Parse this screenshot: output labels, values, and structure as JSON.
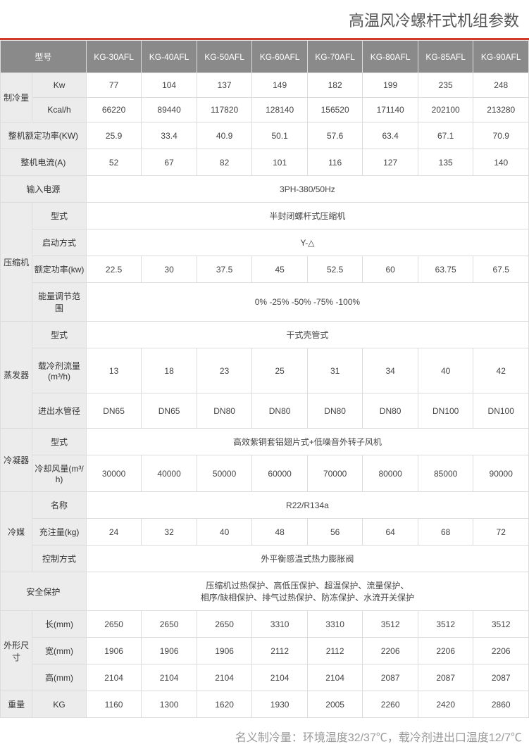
{
  "title": "高温风冷螺杆式机组参数",
  "footnote": "名义制冷量：环境温度32/37℃，载冷剂进出口温度12/7℃",
  "colors": {
    "accent": "#d13a2d",
    "header_bg": "#8a8a8a",
    "header_fg": "#ffffff",
    "row_head_bg": "#ececec",
    "border": "#dcdcdc",
    "title_color": "#555555",
    "footnote_color": "#9a9a9a",
    "cell_text": "#444444"
  },
  "typography": {
    "title_fontsize": 22,
    "cell_fontsize": 12,
    "footnote_fontsize": 16
  },
  "header": {
    "model_label": "型号",
    "models": [
      "KG-30AFL",
      "KG-40AFL",
      "KG-50AFL",
      "KG-60AFL",
      "KG-70AFL",
      "KG-80AFL",
      "KG-85AFL",
      "KG-90AFL"
    ]
  },
  "rows": {
    "cooling": {
      "group": "制冷量",
      "kw_label": "Kw",
      "kw": [
        "77",
        "104",
        "137",
        "149",
        "182",
        "199",
        "235",
        "248"
      ],
      "kcal_label": "Kcal/h",
      "kcal": [
        "66220",
        "89440",
        "117820",
        "128140",
        "156520",
        "171140",
        "202100",
        "213280"
      ]
    },
    "rated_power": {
      "label": "整机额定功率(KW)",
      "vals": [
        "25.9",
        "33.4",
        "40.9",
        "50.1",
        "57.6",
        "63.4",
        "67.1",
        "70.9"
      ]
    },
    "current": {
      "label": "整机电流(A)",
      "vals": [
        "52",
        "67",
        "82",
        "101",
        "116",
        "127",
        "135",
        "140"
      ]
    },
    "power_input": {
      "label": "输入电源",
      "value": "3PH-380/50Hz"
    },
    "compressor": {
      "group": "压缩机",
      "type_label": "型式",
      "type": "半封闭螺杆式压缩机",
      "start_label": "启动方式",
      "start": "Y-△",
      "rated_label": "额定功率(kw)",
      "rated": [
        "22.5",
        "30",
        "37.5",
        "45",
        "52.5",
        "60",
        "63.75",
        "67.5"
      ],
      "range_label": "能量调节范围",
      "range": "0% -25% -50% -75% -100%"
    },
    "evaporator": {
      "group": "蒸发器",
      "type_label": "型式",
      "type": "干式壳管式",
      "flow_label": "载冷剂流量(m³/h)",
      "flow": [
        "13",
        "18",
        "23",
        "25",
        "31",
        "34",
        "40",
        "42"
      ],
      "pipe_label": "进出水管径",
      "pipe": [
        "DN65",
        "DN65",
        "DN80",
        "DN80",
        "DN80",
        "DN80",
        "DN100",
        "DN100"
      ]
    },
    "condenser": {
      "group": "冷凝器",
      "type_label": "型式",
      "type": "高效紫铜套铝翅片式+低噪音外转子风机",
      "air_label": "冷却风量(m³/h)",
      "air": [
        "30000",
        "40000",
        "50000",
        "60000",
        "70000",
        "80000",
        "85000",
        "90000"
      ]
    },
    "refrigerant": {
      "group": "冷媒",
      "name_label": "名称",
      "name": "R22/R134a",
      "charge_label": "充注量(kg)",
      "charge": [
        "24",
        "32",
        "40",
        "48",
        "56",
        "64",
        "68",
        "72"
      ],
      "ctrl_label": "控制方式",
      "ctrl": "外平衡感温式热力膨胀阀"
    },
    "safety": {
      "label": "安全保护",
      "line1": "压缩机过热保护、高低压保护、超温保护、流量保护、",
      "line2": "相序/缺相保护、排气过热保护、防冻保护、水流开关保护"
    },
    "dims": {
      "group": "外形尺寸",
      "len_label": "长(mm)",
      "len": [
        "2650",
        "2650",
        "2650",
        "3310",
        "3310",
        "3512",
        "3512",
        "3512"
      ],
      "wid_label": "宽(mm)",
      "wid": [
        "1906",
        "1906",
        "1906",
        "2112",
        "2112",
        "2206",
        "2206",
        "2206"
      ],
      "hei_label": "高(mm)",
      "hei": [
        "2104",
        "2104",
        "2104",
        "2104",
        "2104",
        "2087",
        "2087",
        "2087"
      ]
    },
    "weight": {
      "group": "重量",
      "unit": "KG",
      "vals": [
        "1160",
        "1300",
        "1620",
        "1930",
        "2005",
        "2260",
        "2420",
        "2860"
      ]
    }
  }
}
